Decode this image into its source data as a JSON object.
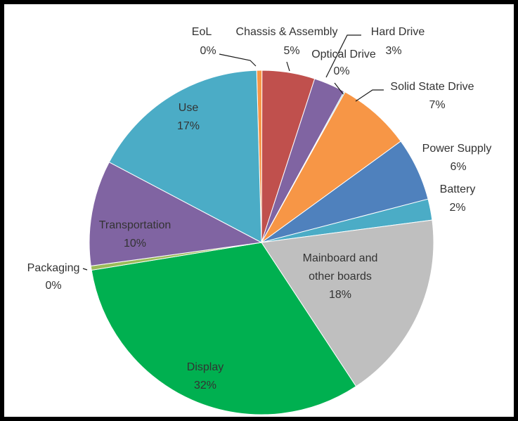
{
  "chart_data": {
    "type": "pie",
    "title": "",
    "start_angle_deg": -1.6,
    "slices": [
      {
        "name": "EoL",
        "value": 0.5,
        "percent_label": "0%",
        "color": "#f79646"
      },
      {
        "name": "Chassis & Assembly",
        "value": 5,
        "percent_label": "5%",
        "color": "#c0504d"
      },
      {
        "name": "Hard Drive",
        "value": 3,
        "percent_label": "3%",
        "color": "#8064a2"
      },
      {
        "name": "Optical Drive",
        "value": 0.1,
        "percent_label": "0%",
        "color": "#4bacc6"
      },
      {
        "name": "Solid State Drive",
        "value": 7,
        "percent_label": "7%",
        "color": "#f79646"
      },
      {
        "name": "Power Supply",
        "value": 6,
        "percent_label": "6%",
        "color": "#4f81bd"
      },
      {
        "name": "Battery",
        "value": 2,
        "percent_label": "2%",
        "color": "#4bacc6"
      },
      {
        "name": "Mainboard and other boards",
        "name_lines": [
          "Mainboard and",
          "other boards"
        ],
        "value": 18,
        "percent_label": "18%",
        "color": "#bfbfbf"
      },
      {
        "name": "Display",
        "value": 32,
        "percent_label": "32%",
        "color": "#00b050"
      },
      {
        "name": "Packaging",
        "value": 0.4,
        "percent_label": "0%",
        "color": "#9bbb59"
      },
      {
        "name": "Transportation",
        "value": 10,
        "percent_label": "10%",
        "color": "#8064a2"
      },
      {
        "name": "Use",
        "value": 17,
        "percent_label": "17%",
        "color": "#4bacc6"
      }
    ]
  }
}
